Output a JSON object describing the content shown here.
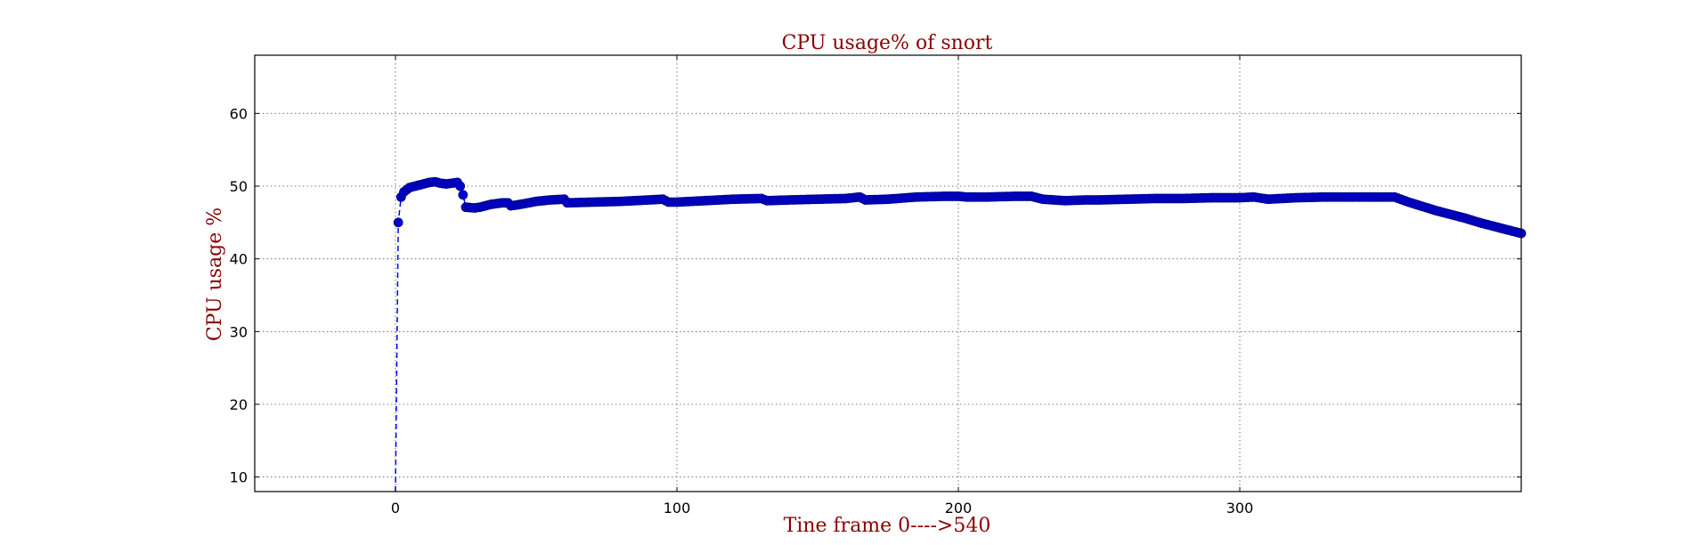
{
  "chart_data": {
    "type": "line",
    "title": "CPU usage% of snort",
    "xlabel": "Tine frame 0---->540",
    "ylabel": "CPU usage %",
    "xlim": [
      -50,
      400
    ],
    "ylim": [
      8,
      68
    ],
    "xticks": [
      0,
      100,
      200,
      300
    ],
    "yticks": [
      10,
      20,
      30,
      40,
      50,
      60
    ],
    "grid": true,
    "line_style": "dashed",
    "marker": "circle",
    "colors": {
      "line": "#0000ff",
      "marker_fill": "#0000cc",
      "marker_edge": "#00008b",
      "title": "#8b0000"
    },
    "series_start": {
      "x": [
        0,
        1
      ],
      "y": [
        8,
        45
      ]
    },
    "anchors": [
      [
        1,
        45.0
      ],
      [
        2,
        48.5
      ],
      [
        3,
        49.2
      ],
      [
        5,
        49.8
      ],
      [
        8,
        50.1
      ],
      [
        10,
        50.3
      ],
      [
        12,
        50.5
      ],
      [
        14,
        50.6
      ],
      [
        16,
        50.4
      ],
      [
        18,
        50.3
      ],
      [
        20,
        50.4
      ],
      [
        22,
        50.5
      ],
      [
        23,
        50.0
      ],
      [
        24,
        48.8
      ],
      [
        25,
        47.1
      ],
      [
        28,
        47.0
      ],
      [
        30,
        47.1
      ],
      [
        32,
        47.3
      ],
      [
        34,
        47.5
      ],
      [
        36,
        47.6
      ],
      [
        38,
        47.7
      ],
      [
        40,
        47.7
      ],
      [
        41,
        47.3
      ],
      [
        43,
        47.4
      ],
      [
        46,
        47.6
      ],
      [
        50,
        47.9
      ],
      [
        55,
        48.1
      ],
      [
        60,
        48.2
      ],
      [
        61,
        47.7
      ],
      [
        70,
        47.8
      ],
      [
        80,
        47.9
      ],
      [
        90,
        48.1
      ],
      [
        95,
        48.2
      ],
      [
        97,
        47.8
      ],
      [
        100,
        47.8
      ],
      [
        110,
        48.0
      ],
      [
        120,
        48.2
      ],
      [
        130,
        48.3
      ],
      [
        132,
        48.0
      ],
      [
        140,
        48.1
      ],
      [
        150,
        48.2
      ],
      [
        160,
        48.3
      ],
      [
        165,
        48.5
      ],
      [
        167,
        48.1
      ],
      [
        175,
        48.2
      ],
      [
        185,
        48.5
      ],
      [
        195,
        48.6
      ],
      [
        200,
        48.6
      ],
      [
        203,
        48.5
      ],
      [
        210,
        48.5
      ],
      [
        220,
        48.6
      ],
      [
        226,
        48.6
      ],
      [
        230,
        48.2
      ],
      [
        238,
        48.0
      ],
      [
        245,
        48.1
      ],
      [
        250,
        48.1
      ],
      [
        260,
        48.2
      ],
      [
        270,
        48.3
      ],
      [
        280,
        48.3
      ],
      [
        290,
        48.4
      ],
      [
        300,
        48.4
      ],
      [
        305,
        48.5
      ],
      [
        310,
        48.2
      ],
      [
        320,
        48.4
      ],
      [
        330,
        48.5
      ],
      [
        340,
        48.5
      ],
      [
        350,
        48.5
      ],
      [
        355,
        48.5
      ],
      [
        360,
        47.8
      ],
      [
        365,
        47.2
      ],
      [
        370,
        46.6
      ],
      [
        375,
        46.1
      ],
      [
        380,
        45.6
      ],
      [
        385,
        45.0
      ],
      [
        390,
        44.5
      ],
      [
        395,
        44.0
      ],
      [
        400,
        43.5
      ]
    ]
  }
}
